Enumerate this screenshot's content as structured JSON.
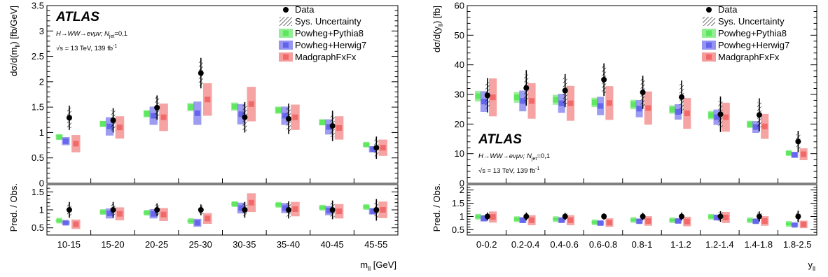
{
  "colors": {
    "pythia": "#79e979",
    "herwig": "#7b7bee",
    "madgraph": "#f38484",
    "pythia_marker": "#2ee02e",
    "herwig_marker": "#3a3ae8",
    "madgraph_marker": "#ee3a3a",
    "data": "#000000"
  },
  "chart_data": [
    {
      "type": "scatter",
      "atlas_label": "ATLAS",
      "process_label": "H→WW→eνμν; N",
      "process_sub": "jet",
      "process_suffix": "=0,1",
      "energy_label": "√s = 13 TeV, 139 fb",
      "energy_sup": "-1",
      "ylabel_prefix": "dσ/d(m",
      "ylabel_sub": "ll",
      "ylabel_suffix": ") [fb/GeV]",
      "ratio_ylabel": "Pred. / Obs.",
      "xlabel_main": "m",
      "xlabel_sub": "ll",
      "xlabel_unit": " [GeV]",
      "legend": [
        "Data",
        "Sys. Uncertainty",
        "Powheg+Pythia8",
        "Powheg+Herwig7",
        "MadgraphFxFx"
      ],
      "legend_position": "top-right",
      "labels_position": "top-left",
      "categories": [
        "10-15",
        "15-20",
        "20-25",
        "25-30",
        "30-35",
        "35-40",
        "40-45",
        "45-55"
      ],
      "ylim": [
        0,
        3.5
      ],
      "yticks": [
        0,
        0.5,
        1,
        1.5,
        2,
        2.5,
        3,
        3.5
      ],
      "yticklabels": [
        "0",
        "0.5",
        "1",
        "1.5",
        "2",
        "2.5",
        "3",
        "3.5"
      ],
      "ratio_ylim": [
        0.3,
        1.7
      ],
      "ratio_yticks": [
        0.5,
        1,
        1.5
      ],
      "ratio_yticklabels": [
        "0.5",
        "1",
        "1.5"
      ],
      "data": {
        "values": [
          1.29,
          1.24,
          1.49,
          2.17,
          1.3,
          1.27,
          1.13,
          0.7
        ],
        "stat_err": [
          0.24,
          0.24,
          0.24,
          0.3,
          0.3,
          0.3,
          0.3,
          0.22
        ],
        "sys_err": [
          0.2,
          0.2,
          0.21,
          0.25,
          0.27,
          0.24,
          0.22,
          0.17
        ]
      },
      "series": [
        {
          "name": "Powheg+Pythia8",
          "values": [
            0.91,
            1.17,
            1.37,
            1.5,
            1.51,
            1.44,
            1.2,
            0.76
          ],
          "err": [
            0.05,
            0.06,
            0.07,
            0.08,
            0.08,
            0.07,
            0.06,
            0.04
          ]
        },
        {
          "name": "Powheg+Herwig7",
          "values": [
            0.83,
            1.12,
            1.33,
            1.38,
            1.36,
            1.33,
            1.11,
            0.67
          ],
          "err": [
            0.08,
            0.18,
            0.18,
            0.23,
            0.2,
            0.18,
            0.15,
            0.06
          ]
        },
        {
          "name": "MadgraphFxFx",
          "values": [
            0.78,
            1.1,
            1.3,
            1.65,
            1.56,
            1.3,
            1.09,
            0.7
          ],
          "err": [
            0.17,
            0.22,
            0.27,
            0.32,
            0.34,
            0.25,
            0.23,
            0.16
          ]
        }
      ],
      "ratio": {
        "data_values": [
          1.0,
          1.0,
          1.0,
          1.0,
          1.0,
          1.0,
          1.0,
          1.0
        ],
        "data_err": [
          0.22,
          0.22,
          0.18,
          0.15,
          0.22,
          0.24,
          0.26,
          0.3
        ],
        "series": [
          {
            "name": "Powheg+Pythia8",
            "values": [
              0.7,
              0.94,
              0.92,
              0.69,
              1.16,
              1.14,
              1.06,
              1.08
            ],
            "err": [
              0.04,
              0.05,
              0.05,
              0.04,
              0.06,
              0.05,
              0.05,
              0.05
            ]
          },
          {
            "name": "Powheg+Herwig7",
            "values": [
              0.64,
              0.9,
              0.89,
              0.64,
              1.05,
              1.05,
              0.98,
              0.96
            ],
            "err": [
              0.06,
              0.14,
              0.13,
              0.11,
              0.15,
              0.14,
              0.13,
              0.09
            ]
          },
          {
            "name": "MadgraphFxFx",
            "values": [
              0.6,
              0.89,
              0.87,
              0.76,
              1.2,
              1.02,
              0.96,
              1.0
            ],
            "err": [
              0.13,
              0.18,
              0.18,
              0.15,
              0.26,
              0.2,
              0.2,
              0.23
            ]
          }
        ]
      }
    },
    {
      "type": "scatter",
      "atlas_label": "ATLAS",
      "process_label": "H→WW→eνμν; N",
      "process_sub": "jet",
      "process_suffix": "=0,1",
      "energy_label": "√s = 13 TeV, 139 fb",
      "energy_sup": "-1",
      "ylabel_prefix": "dσ/d(y",
      "ylabel_sub": "ll",
      "ylabel_suffix": ") [fb]",
      "ratio_ylabel": "Pred. / Obs.",
      "xlabel_main": "y",
      "xlabel_sub": "ll",
      "xlabel_unit": "",
      "legend": [
        "Data",
        "Sys. Uncertainty",
        "Powheg+Pythia8",
        "Powheg+Herwig7",
        "MadgraphFxFx"
      ],
      "legend_position": "top-right",
      "labels_position": "bottom-left",
      "categories": [
        "0-0.2",
        "0.2-0.4",
        "0.4-0.6",
        "0.6-0.8",
        "0.8-1",
        "1-1.2",
        "1.2-1.4",
        "1.4-1.8",
        "1.8-2.5"
      ],
      "ylim": [
        0,
        60
      ],
      "yticks": [
        0,
        10,
        20,
        30,
        40,
        50,
        60
      ],
      "yticklabels": [
        "0",
        "10",
        "20",
        "30",
        "40",
        "50",
        "60"
      ],
      "ratio_ylim": [
        0.3,
        2.2
      ],
      "ratio_yticks": [
        0.5,
        1,
        1.5,
        2
      ],
      "ratio_yticklabels": [
        "0.5",
        "1",
        "1.5",
        "2"
      ],
      "data": {
        "values": [
          29.7,
          32.2,
          31.3,
          35.0,
          30.7,
          29.1,
          23.3,
          23.1,
          14.1
        ],
        "stat_err": [
          5.8,
          6.0,
          5.6,
          5.5,
          5.6,
          5.6,
          6.0,
          5.6,
          3.6
        ],
        "sys_err": [
          4.5,
          4.6,
          4.6,
          4.6,
          4.5,
          4.4,
          4.4,
          4.2,
          2.5
        ]
      },
      "series": [
        {
          "name": "Powheg+Pythia8",
          "values": [
            29.4,
            29.0,
            28.2,
            27.3,
            26.6,
            24.9,
            23.0,
            19.9,
            10.2
          ],
          "err": [
            1.8,
            1.8,
            1.7,
            1.6,
            1.6,
            1.4,
            1.4,
            1.2,
            0.7
          ]
        },
        {
          "name": "Powheg+Herwig7",
          "values": [
            27.6,
            27.8,
            27.0,
            26.1,
            25.2,
            24.1,
            22.3,
            19.0,
            9.6
          ],
          "err": [
            3.5,
            3.5,
            3.2,
            3.1,
            2.9,
            2.6,
            2.6,
            2.0,
            1.0
          ]
        },
        {
          "name": "MadgraphFxFx",
          "values": [
            29.0,
            27.8,
            27.0,
            27.1,
            25.4,
            23.6,
            22.3,
            19.2,
            9.8
          ],
          "err": [
            6.4,
            6.0,
            5.9,
            5.7,
            5.6,
            5.2,
            4.9,
            4.2,
            2.0
          ]
        }
      ],
      "ratio": {
        "data_values": [
          1.0,
          1.0,
          1.0,
          1.0,
          1.0,
          1.0,
          1.0,
          1.0,
          1.0
        ],
        "data_err": [
          0.15,
          0.15,
          0.14,
          0.12,
          0.14,
          0.15,
          0.2,
          0.19,
          0.22
        ],
        "series": [
          {
            "name": "Powheg+Pythia8",
            "values": [
              0.99,
              0.9,
              0.9,
              0.78,
              0.87,
              0.86,
              0.99,
              0.86,
              0.72
            ],
            "err": [
              0.06,
              0.06,
              0.05,
              0.05,
              0.05,
              0.05,
              0.06,
              0.05,
              0.05
            ]
          },
          {
            "name": "Powheg+Herwig7",
            "values": [
              0.93,
              0.86,
              0.86,
              0.75,
              0.82,
              0.83,
              0.96,
              0.82,
              0.68
            ],
            "err": [
              0.12,
              0.11,
              0.1,
              0.09,
              0.09,
              0.09,
              0.11,
              0.09,
              0.07
            ]
          },
          {
            "name": "MadgraphFxFx",
            "values": [
              0.98,
              0.86,
              0.86,
              0.77,
              0.83,
              0.81,
              0.96,
              0.83,
              0.7
            ],
            "err": [
              0.21,
              0.19,
              0.19,
              0.16,
              0.18,
              0.18,
              0.21,
              0.18,
              0.14
            ]
          }
        ]
      }
    }
  ]
}
